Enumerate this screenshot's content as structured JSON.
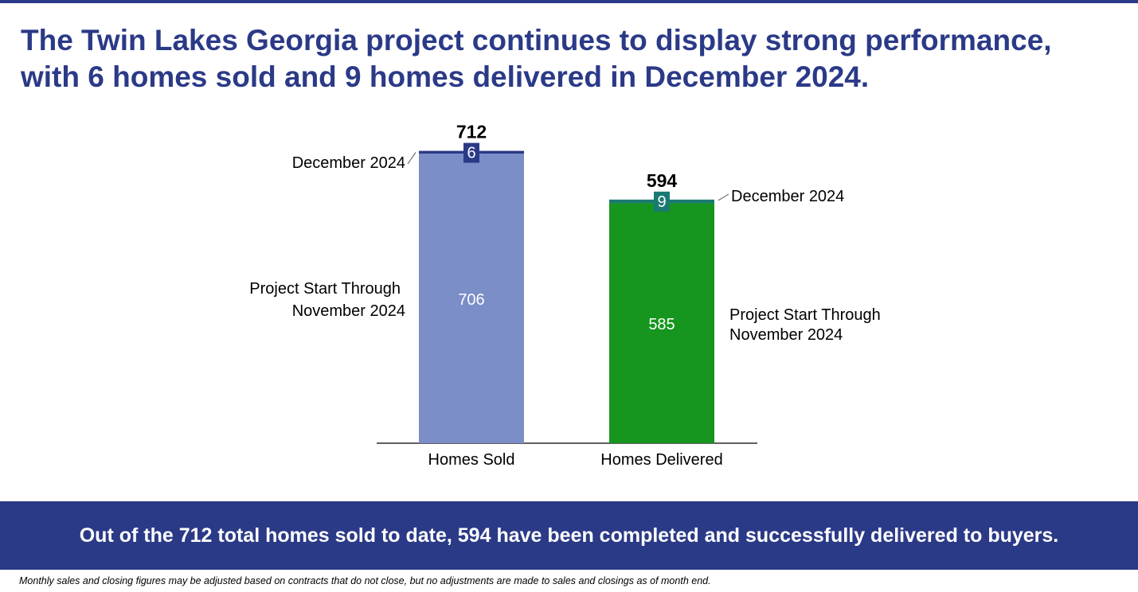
{
  "headline": {
    "line1": "The Twin Lakes Georgia project continues to display strong performance,",
    "line2": "with 6 homes sold and 9 homes delivered in December 2024."
  },
  "banner": {
    "text": "Out of the 712 total homes sold to date, 594 have been completed and successfully delivered to buyers."
  },
  "footnote": "Monthly sales and closing figures may be adjusted based on contracts that do not close, but no adjustments are made to sales and closings as of month end.",
  "chart_data": {
    "type": "bar",
    "stacked": true,
    "categories": [
      "Homes Sold",
      "Homes Delivered"
    ],
    "series": [
      {
        "name": "Project Start Through November 2024",
        "values": [
          706,
          585
        ],
        "colors": [
          "#7b8ec8",
          "#16961e"
        ]
      },
      {
        "name": "December 2024",
        "values": [
          6,
          9
        ],
        "colors": [
          "#2b3a87",
          "#1a7a72"
        ]
      }
    ],
    "totals": [
      712,
      594
    ],
    "grid": false,
    "legend": "none",
    "ylim": [
      0,
      712
    ]
  }
}
